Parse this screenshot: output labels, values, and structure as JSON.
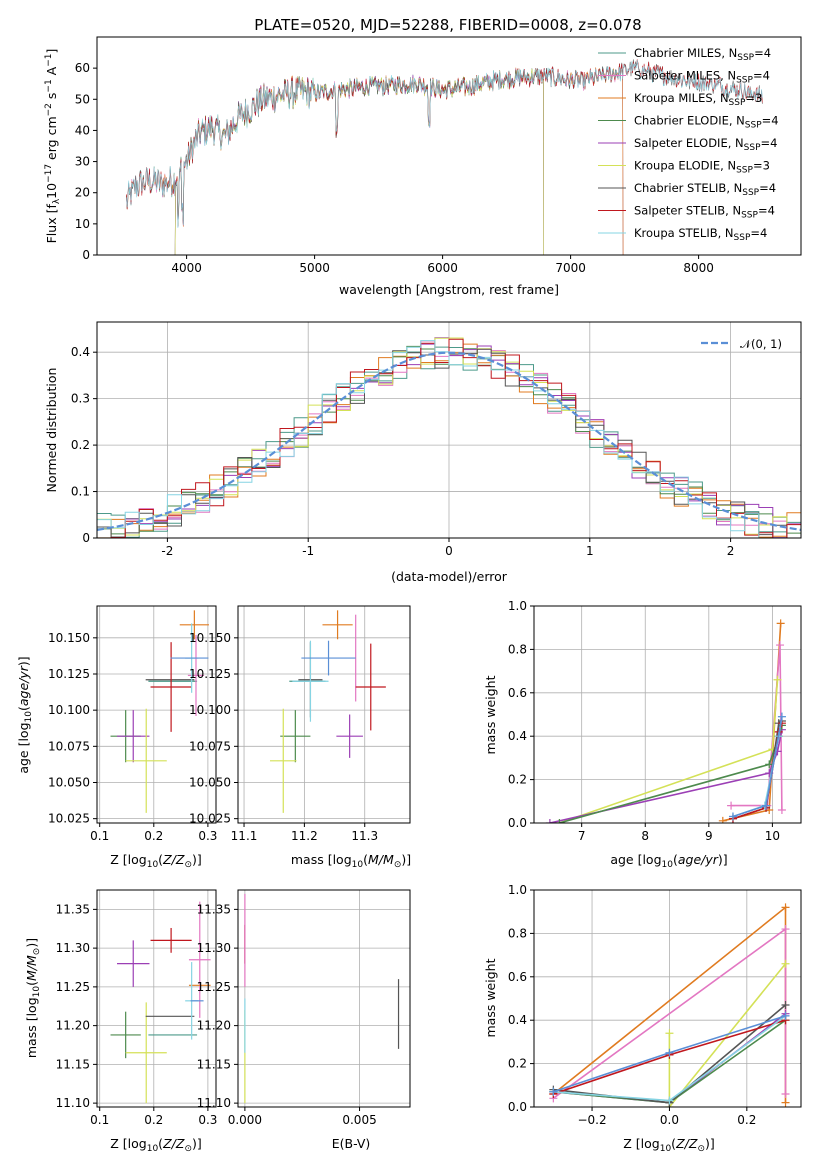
{
  "figure_title": "PLATE=0520, MJD=52288, FIBERID=0008, z=0.078",
  "colors": {
    "Chabrier MILES": "#4c9a8a",
    "Salpeter MILES": "#e377c2",
    "Kroupa MILES": "#e07b20",
    "Chabrier ELODIE": "#4d8a4d",
    "Salpeter ELODIE": "#9b3fb5",
    "Kroupa ELODIE": "#d4e157",
    "Chabrier STELIB": "#555555",
    "Salpeter STELIB": "#c0171e",
    "Kroupa STELIB": "#86d4e3",
    "gaussian": "#5a8fd6",
    "blue_extra": "#5a8fd6"
  },
  "chart_data": [
    {
      "id": "spectrum",
      "type": "line",
      "title": "PLATE=0520, MJD=52288, FIBERID=0008, z=0.078",
      "xlabel": "wavelength [Angstrom, rest frame]",
      "ylabel_parts": [
        "Flux [f",
        "λ",
        "10",
        "−17",
        " erg cm",
        "−2",
        " s",
        "−1",
        " A",
        "−1",
        "]"
      ],
      "xlim": [
        3300,
        8800
      ],
      "ylim": [
        0,
        70
      ],
      "xticks": [
        4000,
        5000,
        6000,
        7000,
        8000
      ],
      "yticks": [
        0,
        10,
        20,
        30,
        40,
        50,
        60
      ],
      "grid": false,
      "legend_position": "top-right",
      "legend": [
        {
          "name": "Chabrier MILES, N",
          "sub": "SSP",
          "val": "=4"
        },
        {
          "name": "Salpeter MILES, N",
          "sub": "SSP",
          "val": "=4"
        },
        {
          "name": "Kroupa MILES, N",
          "sub": "SSP",
          "val": "=3"
        },
        {
          "name": "Chabrier ELODIE, N",
          "sub": "SSP",
          "val": "=4"
        },
        {
          "name": "Salpeter ELODIE, N",
          "sub": "SSP",
          "val": "=4"
        },
        {
          "name": "Kroupa ELODIE, N",
          "sub": "SSP",
          "val": "=3"
        },
        {
          "name": "Chabrier STELIB, N",
          "sub": "SSP",
          "val": "=4"
        },
        {
          "name": "Salpeter STELIB, N",
          "sub": "SSP",
          "val": "=4"
        },
        {
          "name": "Kroupa STELIB, N",
          "sub": "SSP",
          "val": "=4"
        }
      ],
      "continuum": {
        "x": [
          3530,
          3600,
          3700,
          3800,
          3900,
          4000,
          4050,
          4100,
          4200,
          4300,
          4400,
          4500,
          4600,
          4700,
          4800,
          4900,
          5000,
          5200,
          5400,
          5600,
          5800,
          6000,
          6200,
          6400,
          6600,
          6800,
          7000,
          7100,
          7300,
          7500,
          7700,
          7900,
          8100,
          8300,
          8500
        ],
        "y": [
          17,
          22,
          24,
          23,
          24,
          30,
          35,
          39,
          41,
          38,
          44,
          47,
          50,
          51,
          52,
          52.5,
          52,
          53,
          54,
          54.5,
          55,
          53,
          54,
          56,
          57,
          57.5,
          56,
          56,
          58,
          60,
          58,
          56,
          55,
          53,
          51
        ]
      },
      "series_names": [
        "Chabrier MILES",
        "Salpeter MILES",
        "Kroupa MILES",
        "Chabrier ELODIE",
        "Salpeter ELODIE",
        "Kroupa ELODIE",
        "Chabrier STELIB",
        "Salpeter STELIB",
        "Kroupa STELIB"
      ],
      "series_xrange": [
        [
          3530,
          7410
        ],
        [
          3530,
          7410
        ],
        [
          3530,
          7410
        ],
        [
          3910,
          6790
        ],
        [
          3910,
          6790
        ],
        [
          3910,
          6790
        ],
        [
          3530,
          8500
        ],
        [
          3530,
          8500
        ],
        [
          3530,
          8500
        ]
      ]
    },
    {
      "id": "residuals",
      "type": "histogram",
      "xlabel": "(data-model)/error",
      "ylabel": "Normed distribution",
      "xlim": [
        -2.5,
        2.5
      ],
      "ylim": [
        0,
        0.465
      ],
      "xticks": [
        -2,
        -1,
        0,
        1,
        2
      ],
      "yticks": [
        0.0,
        0.1,
        0.2,
        0.3,
        0.4
      ],
      "grid": true,
      "legend_position": "top-right",
      "legend": "𝒩(0, 1)",
      "bin_width": 0.1
    },
    {
      "id": "age_vs_Z",
      "type": "errorbar",
      "xlabel": "Z [log10(Z/Z⊙)]",
      "ylabel": "age  [log10(age/yr)]",
      "xlim": [
        0.095,
        0.315
      ],
      "ylim": [
        10.022,
        10.172
      ],
      "xticks": [
        0.1,
        0.2,
        0.3
      ],
      "xticklabels": [
        "0.1",
        "0.2",
        "0.3"
      ],
      "yticks": [
        10.025,
        10.05,
        10.075,
        10.1,
        10.125,
        10.15
      ],
      "yticklabels": [
        "10.025",
        "10.050",
        "10.075",
        "10.100",
        "10.125",
        "10.150"
      ],
      "grid": true,
      "points": [
        {
          "s": "Chabrier MILES",
          "x": 0.235,
          "xe": 0.045,
          "y": 10.12,
          "ye": 0.0
        },
        {
          "s": "Salpeter MILES",
          "x": 0.278,
          "xe": 0.015,
          "y": 10.124,
          "ye": 0.028
        },
        {
          "s": "Kroupa MILES",
          "x": 0.275,
          "xe": 0.027,
          "y": 10.159,
          "ye": 0.01
        },
        {
          "s": "Chabrier ELODIE",
          "x": 0.148,
          "xe": 0.028,
          "y": 10.082,
          "ye": 0.018
        },
        {
          "s": "Salpeter ELODIE",
          "x": 0.162,
          "xe": 0.03,
          "y": 10.082,
          "ye": 0.018
        },
        {
          "s": "Kroupa ELODIE",
          "x": 0.186,
          "xe": 0.038,
          "y": 10.065,
          "ye": 0.036
        },
        {
          "s": "Chabrier STELIB",
          "x": 0.23,
          "xe": 0.045,
          "y": 10.121,
          "ye": 0.0
        },
        {
          "s": "Salpeter STELIB",
          "x": 0.232,
          "xe": 0.038,
          "y": 10.116,
          "ye": 0.031
        },
        {
          "s": "Kroupa STELIB",
          "x": 0.27,
          "xe": 0.012,
          "y": 10.136,
          "ye": 0.024
        },
        {
          "s": "blue_extra",
          "x": 0.266,
          "xe": 0.035,
          "y": 10.136,
          "ye": 0.0
        }
      ]
    },
    {
      "id": "age_vs_mass",
      "type": "errorbar",
      "xlabel": "mass [log10(M/M⊙)]",
      "ylabel": "",
      "xlim": [
        11.09,
        11.375
      ],
      "ylim": [
        10.022,
        10.172
      ],
      "xticks": [
        11.1,
        11.2,
        11.3
      ],
      "xticklabels": [
        "11.1",
        "11.2",
        "11.3"
      ],
      "yticks": [
        10.025,
        10.05,
        10.075,
        10.1,
        10.125,
        10.15
      ],
      "yticklabels": [
        "10.025",
        "10.050",
        "10.075",
        "10.100",
        "10.125",
        "10.150"
      ],
      "grid": true,
      "points": [
        {
          "s": "Chabrier MILES",
          "x": 11.205,
          "xe": 0.03,
          "y": 10.12,
          "ye": 0.0
        },
        {
          "s": "Salpeter MILES",
          "x": 11.285,
          "xe": 0.0,
          "y": 10.136,
          "ye": 0.03
        },
        {
          "s": "Kroupa MILES",
          "x": 11.255,
          "xe": 0.025,
          "y": 10.159,
          "ye": 0.01
        },
        {
          "s": "Chabrier ELODIE",
          "x": 11.185,
          "xe": 0.025,
          "y": 10.082,
          "ye": 0.018
        },
        {
          "s": "Salpeter ELODIE",
          "x": 11.275,
          "xe": 0.022,
          "y": 10.082,
          "ye": 0.015
        },
        {
          "s": "Kroupa ELODIE",
          "x": 11.165,
          "xe": 0.022,
          "y": 10.065,
          "ye": 0.036
        },
        {
          "s": "Chabrier STELIB",
          "x": 11.21,
          "xe": 0.02,
          "y": 10.121,
          "ye": 0.026
        },
        {
          "s": "Salpeter STELIB",
          "x": 11.31,
          "xe": 0.025,
          "y": 10.116,
          "ye": 0.03
        },
        {
          "s": "Kroupa STELIB",
          "x": 11.21,
          "xe": 0.03,
          "y": 10.12,
          "ye": 0.028
        },
        {
          "s": "blue_extra",
          "x": 11.24,
          "xe": 0.045,
          "y": 10.136,
          "ye": 0.012
        }
      ]
    },
    {
      "id": "weight_vs_age",
      "type": "line",
      "xlabel": "age  [log10(age/yr)]",
      "ylabel": "mass weight",
      "xlim": [
        6.25,
        10.45
      ],
      "ylim": [
        0,
        1.0
      ],
      "xticks": [
        7,
        8,
        9,
        10
      ],
      "xticklabels": [
        "7",
        "8",
        "9",
        "10"
      ],
      "yticks": [
        0.0,
        0.2,
        0.4,
        0.6,
        0.8,
        1.0
      ],
      "yticklabels": [
        "0.0",
        "0.2",
        "0.4",
        "0.6",
        "0.8",
        "1.0"
      ],
      "grid": true,
      "series": [
        {
          "s": "Kroupa MILES",
          "x": [
            9.22,
            9.95,
            10.13
          ],
          "y": [
            0.01,
            0.06,
            0.92
          ]
        },
        {
          "s": "Salpeter MILES",
          "x": [
            9.35,
            9.92,
            10.12,
            10.15
          ],
          "y": [
            0.08,
            0.08,
            0.82,
            0.06
          ]
        },
        {
          "s": "Kroupa ELODIE",
          "x": [
            6.65,
            10.0,
            10.08
          ],
          "y": [
            0.0,
            0.34,
            0.66
          ]
        },
        {
          "s": "Salpeter ELODIE",
          "x": [
            6.5,
            9.95,
            10.08,
            10.15
          ],
          "y": [
            0.0,
            0.23,
            0.33,
            0.43
          ]
        },
        {
          "s": "Chabrier ELODIE",
          "x": [
            6.65,
            9.95,
            10.1,
            10.15
          ],
          "y": [
            0.0,
            0.27,
            0.4,
            0.45
          ]
        },
        {
          "s": "Chabrier STELIB",
          "x": [
            9.38,
            9.9,
            10.1,
            10.15
          ],
          "y": [
            0.02,
            0.07,
            0.46,
            0.47
          ]
        },
        {
          "s": "Salpeter STELIB",
          "x": [
            9.38,
            9.9,
            10.1,
            10.15
          ],
          "y": [
            0.02,
            0.07,
            0.42,
            0.46
          ]
        },
        {
          "s": "Kroupa STELIB",
          "x": [
            9.38,
            9.88,
            10.1,
            10.15
          ],
          "y": [
            0.03,
            0.08,
            0.4,
            0.49
          ]
        },
        {
          "s": "blue_extra",
          "x": [
            9.38,
            9.9,
            10.15
          ],
          "y": [
            0.03,
            0.08,
            0.49
          ]
        }
      ]
    },
    {
      "id": "mass_vs_Z",
      "type": "errorbar",
      "xlabel": "Z [log10(Z/Z⊙)]",
      "ylabel": "mass [log10(M/M⊙)]",
      "xlim": [
        0.095,
        0.315
      ],
      "ylim": [
        11.095,
        11.375
      ],
      "xticks": [
        0.1,
        0.2,
        0.3
      ],
      "xticklabels": [
        "0.1",
        "0.2",
        "0.3"
      ],
      "yticks": [
        11.1,
        11.15,
        11.2,
        11.25,
        11.3,
        11.35
      ],
      "yticklabels": [
        "11.10",
        "11.15",
        "11.20",
        "11.25",
        "11.30",
        "11.35"
      ],
      "grid": true,
      "points": [
        {
          "s": "Chabrier MILES",
          "x": 0.235,
          "xe": 0.045,
          "y": 11.188,
          "ye": 0.0
        },
        {
          "s": "Salpeter MILES",
          "x": 0.285,
          "xe": 0.02,
          "y": 11.285,
          "ye": 0.075
        },
        {
          "s": "Kroupa MILES",
          "x": 0.285,
          "xe": 0.02,
          "y": 11.252,
          "ye": 0.0
        },
        {
          "s": "Chabrier ELODIE",
          "x": 0.148,
          "xe": 0.028,
          "y": 11.188,
          "ye": 0.03
        },
        {
          "s": "Salpeter ELODIE",
          "x": 0.162,
          "xe": 0.03,
          "y": 11.28,
          "ye": 0.03
        },
        {
          "s": "Kroupa ELODIE",
          "x": 0.186,
          "xe": 0.038,
          "y": 11.165,
          "ye": 0.065
        },
        {
          "s": "Chabrier STELIB",
          "x": 0.23,
          "xe": 0.045,
          "y": 11.212,
          "ye": 0.0
        },
        {
          "s": "Salpeter STELIB",
          "x": 0.232,
          "xe": 0.038,
          "y": 11.31,
          "ye": 0.016
        },
        {
          "s": "Kroupa STELIB",
          "x": 0.27,
          "xe": 0.012,
          "y": 11.232,
          "ye": 0.05
        },
        {
          "s": "blue_extra",
          "x": 0.28,
          "xe": 0.012,
          "y": 11.232,
          "ye": 0.0
        }
      ]
    },
    {
      "id": "mass_vs_ebv",
      "type": "errorbar",
      "xlabel": "E(B-V)",
      "ylabel": "",
      "xlim": [
        -0.0003,
        0.0072
      ],
      "ylim": [
        11.095,
        11.375
      ],
      "xticks": [
        0.0,
        0.005
      ],
      "xticklabels": [
        "0.000",
        "0.005"
      ],
      "yticks": [
        11.1,
        11.15,
        11.2,
        11.25,
        11.3,
        11.35
      ],
      "yticklabels": [
        "11.10",
        "11.15",
        "11.20",
        "11.25",
        "11.30",
        "11.35"
      ],
      "grid": true,
      "points": [
        {
          "s": "Chabrier STELIB",
          "x": 0.0067,
          "xe": 0.0,
          "y": 11.215,
          "ye": 0.045
        },
        {
          "s": "Salpeter STELIB",
          "x": 0.0,
          "xe": 0.0,
          "y": 11.305,
          "ye": 0.025
        },
        {
          "s": "Salpeter MILES",
          "x": 0.0,
          "xe": 0.0,
          "y": 11.31,
          "ye": 0.06
        },
        {
          "s": "Kroupa ELODIE",
          "x": 0.0,
          "xe": 0.0,
          "y": 11.16,
          "ye": 0.06
        },
        {
          "s": "Kroupa STELIB",
          "x": 0.0,
          "xe": 0.0,
          "y": 11.2,
          "ye": 0.035
        }
      ]
    },
    {
      "id": "weight_vs_Z",
      "type": "line",
      "xlabel": "Z [log10(Z/Z⊙)]",
      "ylabel": "mass weight",
      "xlim": [
        -0.35,
        0.34
      ],
      "ylim": [
        0,
        1.0
      ],
      "xticks": [
        -0.2,
        0.0,
        0.2
      ],
      "xticklabels": [
        "−0.2",
        "0.0",
        "0.2"
      ],
      "yticks": [
        0.0,
        0.2,
        0.4,
        0.6,
        0.8,
        1.0
      ],
      "yticklabels": [
        "0.0",
        "0.2",
        "0.4",
        "0.6",
        "0.8",
        "1.0"
      ],
      "grid": true,
      "series": [
        {
          "s": "Kroupa MILES",
          "x": [
            -0.3,
            0.3,
            0.3
          ],
          "y": [
            0.06,
            0.92,
            0.02
          ]
        },
        {
          "s": "Salpeter MILES",
          "x": [
            -0.3,
            0.3,
            0.3
          ],
          "y": [
            0.04,
            0.82,
            0.06
          ]
        },
        {
          "s": "Kroupa ELODIE",
          "x": [
            0.0,
            0.0,
            0.3
          ],
          "y": [
            0.34,
            0.0,
            0.66
          ]
        },
        {
          "s": "Salpeter ELODIE",
          "x": [
            -0.3,
            0.0,
            0.3
          ],
          "y": [
            0.07,
            0.02,
            0.43
          ]
        },
        {
          "s": "Chabrier ELODIE",
          "x": [
            -0.3,
            0.0,
            0.3
          ],
          "y": [
            0.07,
            0.02,
            0.4
          ]
        },
        {
          "s": "Chabrier STELIB",
          "x": [
            -0.3,
            0.0,
            0.3
          ],
          "y": [
            0.08,
            0.02,
            0.47
          ]
        },
        {
          "s": "Salpeter STELIB",
          "x": [
            -0.3,
            0.0,
            0.3
          ],
          "y": [
            0.06,
            0.24,
            0.4
          ]
        },
        {
          "s": "Kroupa STELIB",
          "x": [
            -0.3,
            0.0,
            0.3
          ],
          "y": [
            0.07,
            0.03,
            0.42
          ]
        },
        {
          "s": "blue_extra",
          "x": [
            -0.3,
            0.0,
            0.3
          ],
          "y": [
            0.07,
            0.25,
            0.42
          ]
        }
      ]
    }
  ]
}
